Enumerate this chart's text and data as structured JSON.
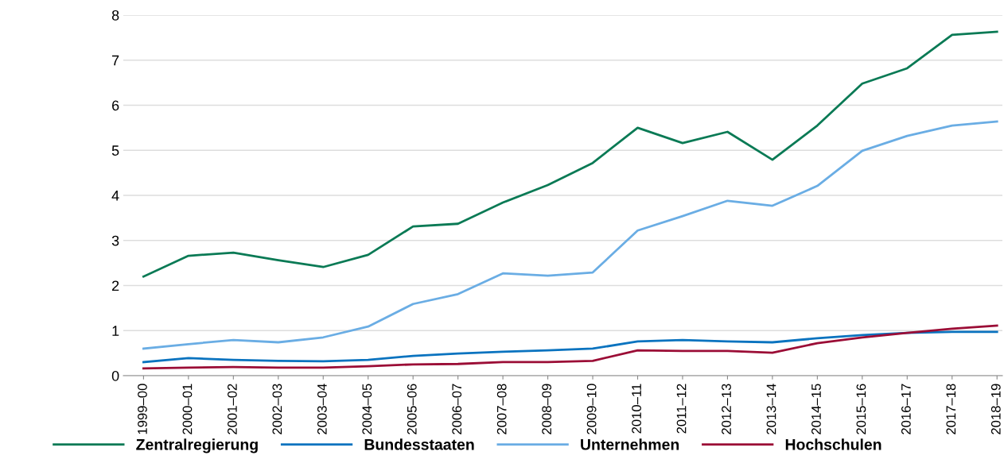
{
  "chart_data": {
    "type": "line",
    "categories": [
      "1999–00",
      "2000–01",
      "2001–02",
      "2002–03",
      "2003–04",
      "2004–05",
      "2005–06",
      "2006–07",
      "2007–08",
      "2008–09",
      "2009–10",
      "2010–11",
      "2011–12",
      "2012–13",
      "2013–14",
      "2014–15",
      "2015–16",
      "2016–17",
      "2017–18",
      "2018–19"
    ],
    "series": [
      {
        "name": "Zentralregierung",
        "color": "#0a7a55",
        "values": [
          2.2,
          2.66,
          2.73,
          2.56,
          2.41,
          2.68,
          3.31,
          3.37,
          3.84,
          4.23,
          4.72,
          5.5,
          5.16,
          5.41,
          4.79,
          5.55,
          6.48,
          6.82,
          7.56,
          7.63
        ]
      },
      {
        "name": "Bundesstaaten",
        "color": "#0a73bf",
        "values": [
          0.3,
          0.39,
          0.35,
          0.33,
          0.32,
          0.35,
          0.44,
          0.49,
          0.53,
          0.56,
          0.6,
          0.76,
          0.79,
          0.76,
          0.74,
          0.83,
          0.9,
          0.95,
          0.97,
          0.97
        ]
      },
      {
        "name": "Unternehmen",
        "color": "#6aade4",
        "values": [
          0.6,
          0.7,
          0.79,
          0.74,
          0.85,
          1.09,
          1.59,
          1.81,
          2.27,
          2.22,
          2.29,
          3.22,
          3.54,
          3.88,
          3.77,
          4.21,
          4.99,
          5.32,
          5.55,
          5.64
        ]
      },
      {
        "name": "Hochschulen",
        "color": "#9b0d36",
        "values": [
          0.16,
          0.18,
          0.19,
          0.18,
          0.18,
          0.21,
          0.25,
          0.26,
          0.3,
          0.3,
          0.33,
          0.56,
          0.55,
          0.55,
          0.51,
          0.72,
          0.85,
          0.95,
          1.04,
          1.11
        ]
      }
    ],
    "ylim": [
      0,
      8
    ],
    "yticks": [
      0,
      1,
      2,
      3,
      4,
      5,
      6,
      7,
      8
    ],
    "grid": "y",
    "legend": "bottom",
    "marker": "none",
    "line_style": "solid"
  }
}
